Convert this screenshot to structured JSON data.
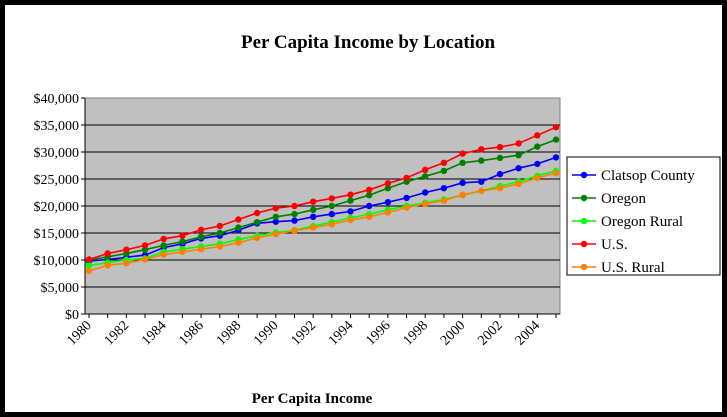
{
  "chart_data": {
    "type": "line",
    "title": "Per Capita Income by Location",
    "xlabel": "Per Capita Income",
    "ylabel": "",
    "ylim": [
      0,
      40000
    ],
    "yticks": [
      "$0",
      "$5,000",
      "$10,000",
      "$15,000",
      "$20,000",
      "$25,000",
      "$30,000",
      "$35,000",
      "$40,000"
    ],
    "xticks": [
      "1980",
      "1982",
      "1984",
      "1986",
      "1988",
      "1990",
      "1992",
      "1994",
      "1996",
      "1998",
      "2000",
      "2002",
      "2004"
    ],
    "x": [
      1980,
      1981,
      1982,
      1983,
      1984,
      1985,
      1986,
      1987,
      1988,
      1989,
      1990,
      1991,
      1992,
      1993,
      1994,
      1995,
      1996,
      1997,
      1998,
      1999,
      2000,
      2001,
      2002,
      2003,
      2004,
      2005
    ],
    "grid": true,
    "legend_position": "right",
    "series": [
      {
        "name": "Clatsop County",
        "color": "#0000ff",
        "values": [
          9800,
          10100,
          10500,
          10900,
          12300,
          13000,
          14000,
          14500,
          15500,
          16800,
          17100,
          17300,
          18000,
          18500,
          19000,
          20000,
          20700,
          21500,
          22500,
          23300,
          24300,
          24500,
          25900,
          27000,
          27800,
          29000
        ]
      },
      {
        "name": "Oregon",
        "color": "#008000",
        "values": [
          10000,
          10600,
          11200,
          11900,
          12700,
          13400,
          14300,
          15000,
          16000,
          17000,
          18000,
          18500,
          19300,
          20000,
          21000,
          22000,
          23300,
          24500,
          25500,
          26500,
          28000,
          28400,
          28900,
          29400,
          31000,
          32300
        ]
      },
      {
        "name": "Oregon Rural",
        "color": "#00ff00",
        "values": [
          9000,
          9500,
          10000,
          10300,
          11500,
          12000,
          12500,
          13000,
          13800,
          14500,
          15100,
          15500,
          16300,
          17000,
          17800,
          18500,
          19300,
          20000,
          20600,
          21200,
          22000,
          22800,
          23700,
          24500,
          25600,
          26500
        ]
      },
      {
        "name": "U.S.",
        "color": "#ff0000",
        "values": [
          10100,
          11200,
          11900,
          12700,
          13900,
          14500,
          15600,
          16300,
          17500,
          18700,
          19600,
          20000,
          20800,
          21400,
          22100,
          23000,
          24200,
          25200,
          26700,
          28000,
          29700,
          30500,
          30900,
          31600,
          33100,
          34600
        ]
      },
      {
        "name": "U.S. Rural",
        "color": "#ff7f00",
        "values": [
          8000,
          9000,
          9400,
          10100,
          11000,
          11500,
          12000,
          12500,
          13200,
          14100,
          14800,
          15400,
          16000,
          16600,
          17400,
          18000,
          18800,
          19700,
          20400,
          21000,
          22100,
          22800,
          23300,
          24100,
          25200,
          26100
        ]
      }
    ]
  }
}
